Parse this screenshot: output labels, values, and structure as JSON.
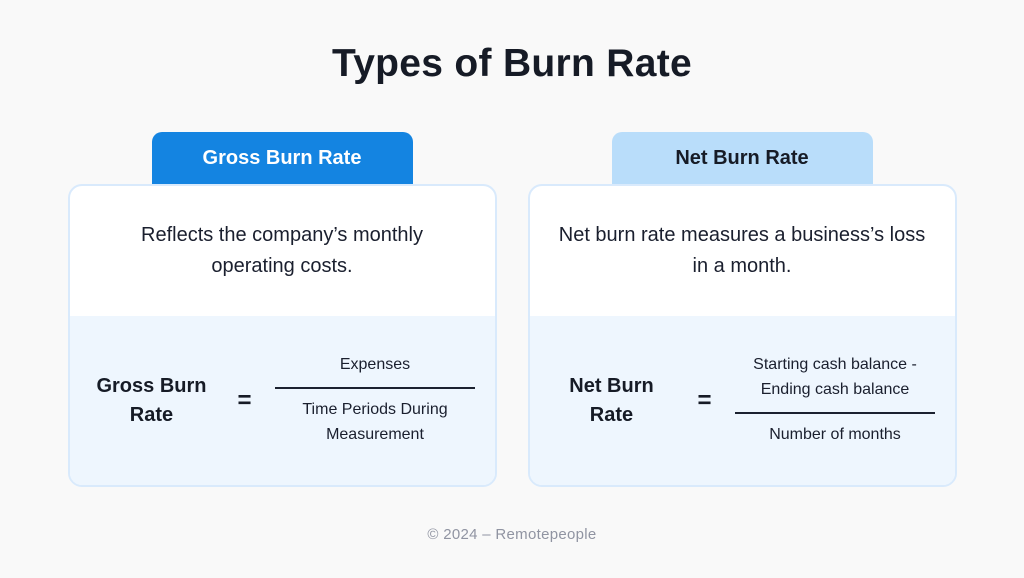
{
  "page": {
    "title": "Types of Burn Rate",
    "footer": "© 2024 – Remotepeople",
    "colors": {
      "background": "#f9f9f9",
      "text_dark": "#161b26",
      "gross_header_bg": "#1484e1",
      "gross_header_text": "#ffffff",
      "net_header_bg": "#b9ddfa",
      "net_header_text": "#161b26",
      "card_bg": "#ffffff",
      "card_border": "#d9eafc",
      "formula_section_bg": "#eef6fe",
      "fraction_line": "#1b2130",
      "footer_text": "#9094a2"
    }
  },
  "cards": [
    {
      "header": "Gross Burn Rate",
      "description": "Reflects the company’s monthly operating costs.",
      "formula": {
        "label": "Gross Burn Rate",
        "equals": "=",
        "numerator": "Expenses",
        "denominator": "Time Periods During Measurement"
      }
    },
    {
      "header": "Net Burn Rate",
      "description": "Net burn rate measures a business’s loss in a month.",
      "formula": {
        "label": "Net Burn Rate",
        "equals": "=",
        "numerator": "Starting cash balance - Ending cash balance",
        "denominator": "Number of months"
      }
    }
  ]
}
